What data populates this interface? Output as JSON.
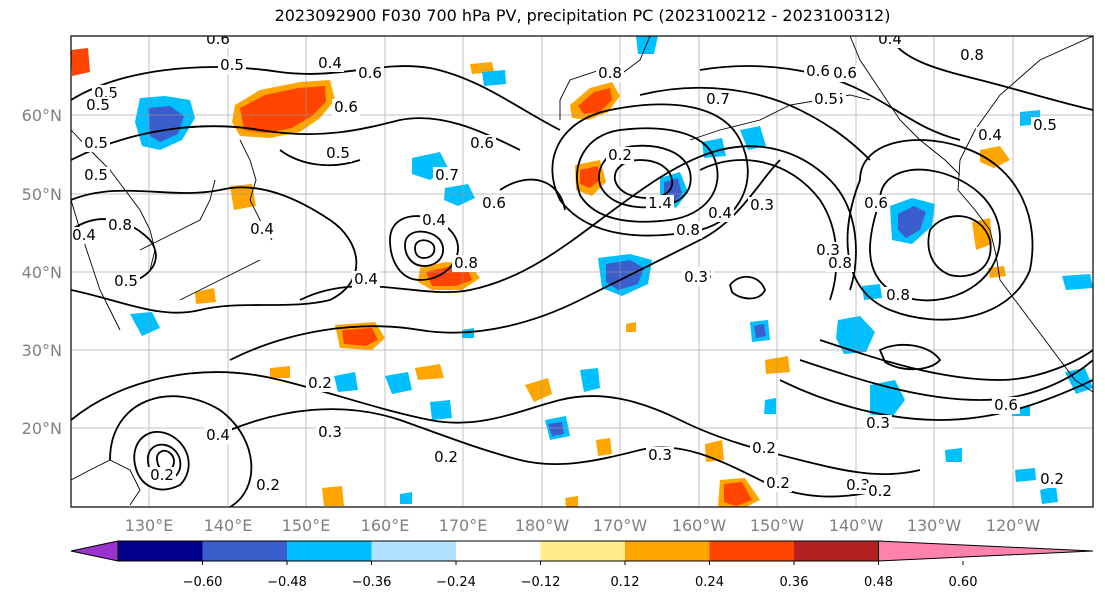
{
  "title": "2023092900 F030 700 hPa PV, precipitation PC (2023100212 - 2023100312)",
  "map": {
    "lat_labels": [
      "60°N",
      "50°N",
      "40°N",
      "30°N",
      "20°N"
    ],
    "lon_labels": [
      "130°E",
      "140°E",
      "150°E",
      "160°E",
      "170°E",
      "180°W",
      "170°W",
      "160°W",
      "150°W",
      "140°W",
      "130°W",
      "120°W"
    ],
    "contour_labels": [
      "0.6",
      "0.5",
      "0.5",
      "0.4",
      "0.6",
      "0.6",
      "0.5",
      "0.7",
      "0.5",
      "0.6",
      "0.4",
      "0.8",
      "0.6",
      "0.7",
      "0.6",
      "0.2",
      "1.4",
      "0.8",
      "0.4",
      "0.3",
      "0.3",
      "0.8",
      "0.6",
      "0.4",
      "0.8",
      "0.5",
      "0.4",
      "0.5",
      "0.4",
      "0.5",
      "0.8",
      "0.3",
      "0.2",
      "0.4",
      "0.3",
      "0.2",
      "0.2",
      "0.3",
      "0.2",
      "0.2",
      "0.3",
      "0.2",
      "0.6",
      "0.3",
      "0.2",
      "0.8",
      "0.5",
      "0.4",
      "0.5",
      "0.2",
      "0.6",
      "0.8",
      "0.5",
      "0.7",
      "0.4",
      "0.3",
      "0.2"
    ]
  },
  "colorbar": {
    "ticks": [
      "−0.60",
      "−0.48",
      "−0.36",
      "−0.24",
      "−0.12",
      "0.12",
      "0.24",
      "0.36",
      "0.48",
      "0.60"
    ],
    "colors": [
      "#9a32cd",
      "#00008b",
      "#3a5fcd",
      "#00bfff",
      "#b0e2ff",
      "#ffffff",
      "#ffec8b",
      "#ffa500",
      "#ff4500",
      "#b22222",
      "#ff82ab"
    ]
  }
}
